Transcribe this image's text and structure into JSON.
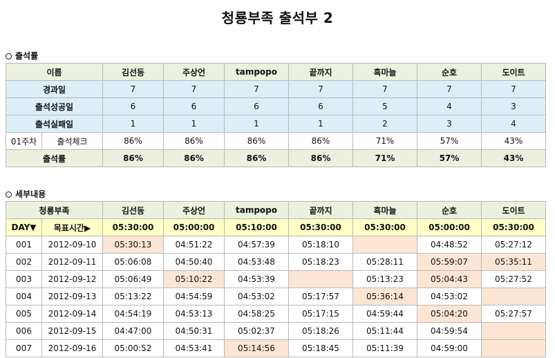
{
  "title": "청룡부족 출석부 2",
  "section1": "출석률",
  "section2": "세부내용",
  "members": [
    "김선동",
    "주상언",
    "tampopo",
    "끝까지",
    "흑마늘",
    "순호",
    "도이트"
  ],
  "summary": {
    "name_header": "이름",
    "rows": [
      {
        "label": "경과일",
        "values": [
          "7",
          "7",
          "7",
          "7",
          "7",
          "7",
          "7"
        ]
      },
      {
        "label": "출석성공일",
        "values": [
          "6",
          "6",
          "6",
          "6",
          "5",
          "4",
          "3"
        ]
      },
      {
        "label": "출석실패일",
        "values": [
          "1",
          "1",
          "1",
          "1",
          "2",
          "3",
          "4"
        ]
      }
    ],
    "week": {
      "week_label": "01주차",
      "label": "출석체크",
      "values": [
        "86%",
        "86%",
        "86%",
        "86%",
        "71%",
        "57%",
        "43%"
      ]
    },
    "rate": {
      "label": "출석률",
      "values": [
        "86%",
        "86%",
        "86%",
        "86%",
        "71%",
        "57%",
        "43%"
      ]
    }
  },
  "detail": {
    "header_label": "청룡부족",
    "day_label": "DAY▼",
    "target_label": "목표시간▶",
    "targets": [
      "05:30:00",
      "05:00:00",
      "05:10:00",
      "05:30:00",
      "05:30:00",
      "05:00:00",
      "05:30:00"
    ],
    "rows": [
      {
        "day": "001",
        "date": "2012-09-10",
        "times": [
          "05:30:13",
          "04:51:22",
          "04:57:39",
          "05:18:10",
          "",
          "04:48:52",
          "05:27:12"
        ],
        "flags": [
          1,
          0,
          0,
          0,
          1,
          0,
          0
        ]
      },
      {
        "day": "002",
        "date": "2012-09-11",
        "times": [
          "05:06:08",
          "04:50:40",
          "04:53:48",
          "05:18:23",
          "05:28:11",
          "05:59:07",
          "05:35:11"
        ],
        "flags": [
          0,
          0,
          0,
          0,
          0,
          1,
          1
        ]
      },
      {
        "day": "003",
        "date": "2012-09-12",
        "times": [
          "05:06:49",
          "05:10:22",
          "04:53:39",
          "",
          "05:13:23",
          "05:04:43",
          "05:27:52"
        ],
        "flags": [
          0,
          1,
          0,
          1,
          0,
          1,
          0
        ]
      },
      {
        "day": "004",
        "date": "2012-09-13",
        "times": [
          "05:13:22",
          "04:54:59",
          "04:53:02",
          "05:17:57",
          "05:36:14",
          "04:53:02",
          ""
        ],
        "flags": [
          0,
          0,
          0,
          0,
          1,
          0,
          1
        ]
      },
      {
        "day": "005",
        "date": "2012-09-14",
        "times": [
          "04:54:19",
          "04:53:13",
          "04:58:25",
          "05:17:15",
          "04:59:44",
          "05:04:20",
          "05:27:57"
        ],
        "flags": [
          0,
          0,
          0,
          0,
          0,
          1,
          0
        ]
      },
      {
        "day": "006",
        "date": "2012-09-15",
        "times": [
          "04:47:00",
          "04:50:31",
          "05:02:37",
          "05:18:26",
          "05:11:44",
          "04:59:54",
          ""
        ],
        "flags": [
          0,
          0,
          0,
          0,
          0,
          0,
          1
        ]
      },
      {
        "day": "007",
        "date": "2012-09-16",
        "times": [
          "05:00:52",
          "04:53:41",
          "05:14:56",
          "05:18:45",
          "05:11:39",
          "04:59:00",
          ""
        ],
        "flags": [
          0,
          0,
          1,
          0,
          0,
          0,
          1
        ]
      }
    ]
  }
}
